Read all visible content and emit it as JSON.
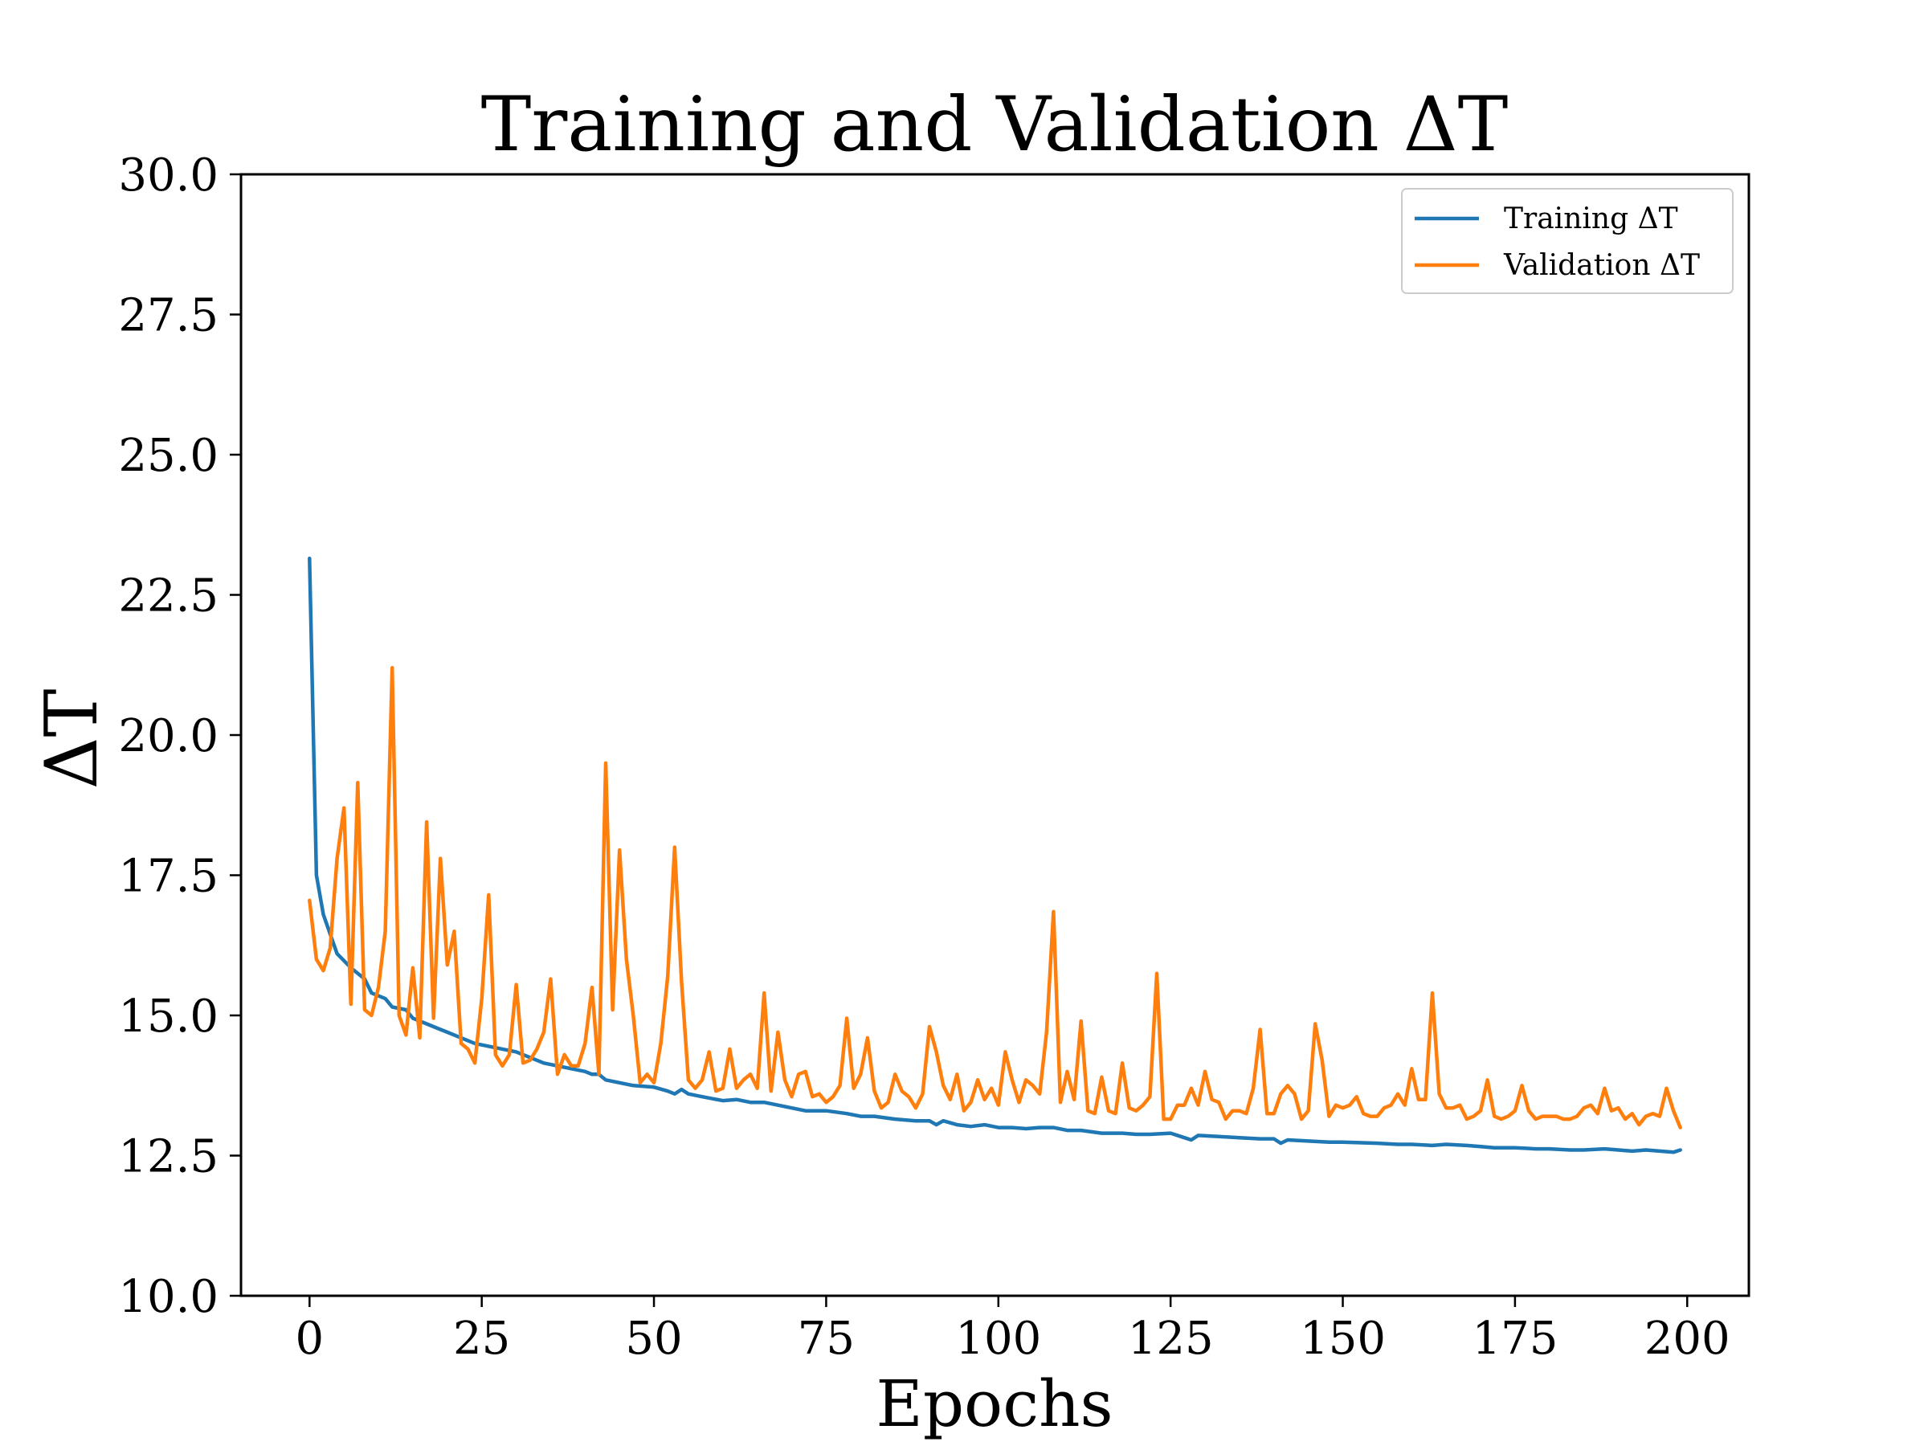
{
  "chart_data": {
    "type": "line",
    "title": "Training and Validation ΔT",
    "xlabel": "Epochs",
    "ylabel": "ΔT",
    "xlim": [
      -9.95,
      208.95
    ],
    "ylim": [
      10.0,
      30.0
    ],
    "xticks": [
      0,
      25,
      50,
      75,
      100,
      125,
      150,
      175,
      200
    ],
    "yticks": [
      10.0,
      12.5,
      15.0,
      17.5,
      20.0,
      22.5,
      25.0,
      27.5,
      30.0
    ],
    "xtick_labels": [
      "0",
      "25",
      "50",
      "75",
      "100",
      "125",
      "150",
      "175",
      "200"
    ],
    "ytick_labels": [
      "10.0",
      "12.5",
      "15.0",
      "17.5",
      "20.0",
      "22.5",
      "25.0",
      "27.5",
      "30.0"
    ],
    "grid": false,
    "legend_position": "top-right",
    "series": [
      {
        "name": "Training ΔT",
        "color": "#1f77b4",
        "points": [
          [
            0,
            23.15
          ],
          [
            1,
            17.5
          ],
          [
            2,
            16.8
          ],
          [
            4,
            16.1
          ],
          [
            6,
            15.85
          ],
          [
            8,
            15.65
          ],
          [
            9,
            15.4
          ],
          [
            11,
            15.3
          ],
          [
            12,
            15.15
          ],
          [
            14,
            15.1
          ],
          [
            15,
            14.95
          ],
          [
            17,
            14.85
          ],
          [
            19,
            14.75
          ],
          [
            20,
            14.7
          ],
          [
            22,
            14.6
          ],
          [
            24,
            14.5
          ],
          [
            26,
            14.45
          ],
          [
            28,
            14.4
          ],
          [
            30,
            14.35
          ],
          [
            32,
            14.25
          ],
          [
            34,
            14.15
          ],
          [
            36,
            14.1
          ],
          [
            38,
            14.05
          ],
          [
            40,
            14.0
          ],
          [
            41,
            13.95
          ],
          [
            42,
            13.95
          ],
          [
            43,
            13.85
          ],
          [
            45,
            13.8
          ],
          [
            47,
            13.75
          ],
          [
            50,
            13.72
          ],
          [
            52,
            13.65
          ],
          [
            53,
            13.6
          ],
          [
            54,
            13.68
          ],
          [
            55,
            13.6
          ],
          [
            57,
            13.55
          ],
          [
            60,
            13.48
          ],
          [
            62,
            13.5
          ],
          [
            64,
            13.45
          ],
          [
            66,
            13.45
          ],
          [
            68,
            13.4
          ],
          [
            70,
            13.35
          ],
          [
            72,
            13.3
          ],
          [
            75,
            13.3
          ],
          [
            78,
            13.25
          ],
          [
            80,
            13.2
          ],
          [
            82,
            13.2
          ],
          [
            85,
            13.15
          ],
          [
            88,
            13.12
          ],
          [
            90,
            13.12
          ],
          [
            91,
            13.05
          ],
          [
            92,
            13.12
          ],
          [
            94,
            13.05
          ],
          [
            96,
            13.02
          ],
          [
            98,
            13.05
          ],
          [
            100,
            13.0
          ],
          [
            102,
            13.0
          ],
          [
            104,
            12.98
          ],
          [
            106,
            13.0
          ],
          [
            108,
            13.0
          ],
          [
            110,
            12.95
          ],
          [
            112,
            12.95
          ],
          [
            115,
            12.9
          ],
          [
            118,
            12.9
          ],
          [
            120,
            12.88
          ],
          [
            122,
            12.88
          ],
          [
            125,
            12.9
          ],
          [
            127,
            12.82
          ],
          [
            128,
            12.78
          ],
          [
            129,
            12.86
          ],
          [
            132,
            12.84
          ],
          [
            135,
            12.82
          ],
          [
            138,
            12.8
          ],
          [
            140,
            12.8
          ],
          [
            141,
            12.72
          ],
          [
            142,
            12.78
          ],
          [
            145,
            12.76
          ],
          [
            148,
            12.74
          ],
          [
            150,
            12.74
          ],
          [
            155,
            12.72
          ],
          [
            158,
            12.7
          ],
          [
            160,
            12.7
          ],
          [
            163,
            12.68
          ],
          [
            165,
            12.7
          ],
          [
            168,
            12.68
          ],
          [
            170,
            12.66
          ],
          [
            172,
            12.64
          ],
          [
            175,
            12.64
          ],
          [
            178,
            12.62
          ],
          [
            180,
            12.62
          ],
          [
            183,
            12.6
          ],
          [
            185,
            12.6
          ],
          [
            188,
            12.62
          ],
          [
            190,
            12.6
          ],
          [
            192,
            12.58
          ],
          [
            194,
            12.6
          ],
          [
            196,
            12.58
          ],
          [
            198,
            12.56
          ],
          [
            199,
            12.6
          ]
        ]
      },
      {
        "name": "Validation ΔT",
        "color": "#ff7f0e",
        "points": [
          [
            0,
            17.05
          ],
          [
            1,
            16.0
          ],
          [
            2,
            15.8
          ],
          [
            3,
            16.2
          ],
          [
            4,
            17.8
          ],
          [
            5,
            18.7
          ],
          [
            6,
            15.2
          ],
          [
            7,
            19.15
          ],
          [
            8,
            15.1
          ],
          [
            9,
            15.0
          ],
          [
            10,
            15.5
          ],
          [
            11,
            16.5
          ],
          [
            12,
            21.2
          ],
          [
            13,
            15.0
          ],
          [
            14,
            14.65
          ],
          [
            15,
            15.85
          ],
          [
            16,
            14.6
          ],
          [
            17,
            18.45
          ],
          [
            18,
            14.95
          ],
          [
            19,
            17.8
          ],
          [
            20,
            15.9
          ],
          [
            21,
            16.5
          ],
          [
            22,
            14.5
          ],
          [
            23,
            14.4
          ],
          [
            24,
            14.15
          ],
          [
            25,
            15.3
          ],
          [
            26,
            17.15
          ],
          [
            27,
            14.3
          ],
          [
            28,
            14.1
          ],
          [
            29,
            14.3
          ],
          [
            30,
            15.55
          ],
          [
            31,
            14.15
          ],
          [
            32,
            14.2
          ],
          [
            33,
            14.4
          ],
          [
            34,
            14.7
          ],
          [
            35,
            15.65
          ],
          [
            36,
            13.95
          ],
          [
            37,
            14.3
          ],
          [
            38,
            14.1
          ],
          [
            39,
            14.1
          ],
          [
            40,
            14.5
          ],
          [
            41,
            15.5
          ],
          [
            42,
            13.95
          ],
          [
            43,
            19.5
          ],
          [
            44,
            15.1
          ],
          [
            45,
            17.95
          ],
          [
            46,
            16.0
          ],
          [
            47,
            15.0
          ],
          [
            48,
            13.8
          ],
          [
            49,
            13.95
          ],
          [
            50,
            13.8
          ],
          [
            51,
            14.5
          ],
          [
            52,
            15.7
          ],
          [
            53,
            18.0
          ],
          [
            54,
            15.6
          ],
          [
            55,
            13.85
          ],
          [
            56,
            13.7
          ],
          [
            57,
            13.85
          ],
          [
            58,
            14.35
          ],
          [
            59,
            13.65
          ],
          [
            60,
            13.7
          ],
          [
            61,
            14.4
          ],
          [
            62,
            13.7
          ],
          [
            63,
            13.85
          ],
          [
            64,
            13.95
          ],
          [
            65,
            13.7
          ],
          [
            66,
            15.4
          ],
          [
            67,
            13.65
          ],
          [
            68,
            14.7
          ],
          [
            69,
            13.85
          ],
          [
            70,
            13.55
          ],
          [
            71,
            13.95
          ],
          [
            72,
            14.0
          ],
          [
            73,
            13.55
          ],
          [
            74,
            13.6
          ],
          [
            75,
            13.45
          ],
          [
            76,
            13.55
          ],
          [
            77,
            13.75
          ],
          [
            78,
            14.95
          ],
          [
            79,
            13.7
          ],
          [
            80,
            13.95
          ],
          [
            81,
            14.6
          ],
          [
            82,
            13.65
          ],
          [
            83,
            13.35
          ],
          [
            84,
            13.45
          ],
          [
            85,
            13.95
          ],
          [
            86,
            13.65
          ],
          [
            87,
            13.55
          ],
          [
            88,
            13.35
          ],
          [
            89,
            13.6
          ],
          [
            90,
            14.8
          ],
          [
            91,
            14.35
          ],
          [
            92,
            13.75
          ],
          [
            93,
            13.5
          ],
          [
            94,
            13.95
          ],
          [
            95,
            13.3
          ],
          [
            96,
            13.45
          ],
          [
            97,
            13.85
          ],
          [
            98,
            13.5
          ],
          [
            99,
            13.7
          ],
          [
            100,
            13.4
          ],
          [
            101,
            14.35
          ],
          [
            102,
            13.85
          ],
          [
            103,
            13.45
          ],
          [
            104,
            13.85
          ],
          [
            105,
            13.75
          ],
          [
            106,
            13.6
          ],
          [
            107,
            14.7
          ],
          [
            108,
            16.85
          ],
          [
            109,
            13.45
          ],
          [
            110,
            14.0
          ],
          [
            111,
            13.5
          ],
          [
            112,
            14.9
          ],
          [
            113,
            13.3
          ],
          [
            114,
            13.25
          ],
          [
            115,
            13.9
          ],
          [
            116,
            13.3
          ],
          [
            117,
            13.25
          ],
          [
            118,
            14.15
          ],
          [
            119,
            13.35
          ],
          [
            120,
            13.3
          ],
          [
            121,
            13.4
          ],
          [
            122,
            13.55
          ],
          [
            123,
            15.75
          ],
          [
            124,
            13.15
          ],
          [
            125,
            13.15
          ],
          [
            126,
            13.4
          ],
          [
            127,
            13.4
          ],
          [
            128,
            13.7
          ],
          [
            129,
            13.4
          ],
          [
            130,
            14.0
          ],
          [
            131,
            13.5
          ],
          [
            132,
            13.45
          ],
          [
            133,
            13.15
          ],
          [
            134,
            13.3
          ],
          [
            135,
            13.3
          ],
          [
            136,
            13.25
          ],
          [
            137,
            13.7
          ],
          [
            138,
            14.75
          ],
          [
            139,
            13.25
          ],
          [
            140,
            13.25
          ],
          [
            141,
            13.6
          ],
          [
            142,
            13.75
          ],
          [
            143,
            13.6
          ],
          [
            144,
            13.15
          ],
          [
            145,
            13.3
          ],
          [
            146,
            14.85
          ],
          [
            147,
            14.2
          ],
          [
            148,
            13.2
          ],
          [
            149,
            13.4
          ],
          [
            150,
            13.35
          ],
          [
            151,
            13.4
          ],
          [
            152,
            13.55
          ],
          [
            153,
            13.25
          ],
          [
            154,
            13.2
          ],
          [
            155,
            13.2
          ],
          [
            156,
            13.35
          ],
          [
            157,
            13.4
          ],
          [
            158,
            13.6
          ],
          [
            159,
            13.4
          ],
          [
            160,
            14.05
          ],
          [
            161,
            13.5
          ],
          [
            162,
            13.5
          ],
          [
            163,
            15.4
          ],
          [
            164,
            13.6
          ],
          [
            165,
            13.35
          ],
          [
            166,
            13.35
          ],
          [
            167,
            13.4
          ],
          [
            168,
            13.15
          ],
          [
            169,
            13.2
          ],
          [
            170,
            13.3
          ],
          [
            171,
            13.85
          ],
          [
            172,
            13.2
          ],
          [
            173,
            13.15
          ],
          [
            174,
            13.2
          ],
          [
            175,
            13.3
          ],
          [
            176,
            13.75
          ],
          [
            177,
            13.3
          ],
          [
            178,
            13.15
          ],
          [
            179,
            13.2
          ],
          [
            180,
            13.2
          ],
          [
            181,
            13.2
          ],
          [
            182,
            13.15
          ],
          [
            183,
            13.15
          ],
          [
            184,
            13.2
          ],
          [
            185,
            13.35
          ],
          [
            186,
            13.4
          ],
          [
            187,
            13.25
          ],
          [
            188,
            13.7
          ],
          [
            189,
            13.3
          ],
          [
            190,
            13.35
          ],
          [
            191,
            13.15
          ],
          [
            192,
            13.25
          ],
          [
            193,
            13.05
          ],
          [
            194,
            13.2
          ],
          [
            195,
            13.25
          ],
          [
            196,
            13.2
          ],
          [
            197,
            13.7
          ],
          [
            198,
            13.3
          ],
          [
            199,
            13.0
          ]
        ]
      }
    ]
  }
}
